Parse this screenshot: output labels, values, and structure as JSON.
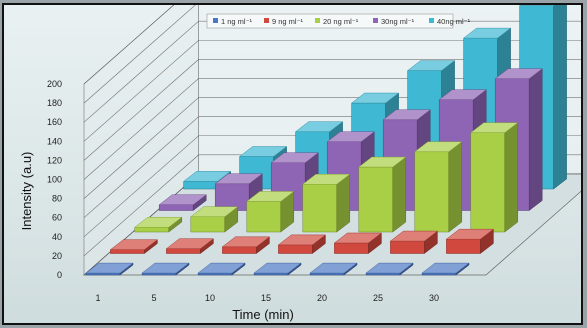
{
  "chart_data": {
    "type": "bar",
    "title": "",
    "xlabel": "Time (min)",
    "ylabel": "Intensity (a.u)",
    "categories": [
      "1",
      "5",
      "10",
      "15",
      "20",
      "25",
      "30"
    ],
    "y_ticks": [
      "0",
      "20",
      "40",
      "60",
      "80",
      "100",
      "120",
      "140",
      "160",
      "180",
      "200"
    ],
    "ylim": [
      0,
      200
    ],
    "grid": true,
    "legend_position": "top",
    "series": [
      {
        "name": "1 ng ml⁻¹",
        "color": "#4a77c4",
        "values": [
          2,
          2,
          2,
          2,
          2,
          2,
          2
        ]
      },
      {
        "name": "9 ng ml⁻¹",
        "color": "#d0483e",
        "values": [
          4,
          5,
          7,
          9,
          11,
          13,
          15
        ]
      },
      {
        "name": "20 ng ml⁻¹",
        "color": "#a8cf45",
        "values": [
          5,
          16,
          32,
          50,
          68,
          84,
          104
        ]
      },
      {
        "name": "30ng ml⁻¹",
        "color": "#8e64b5",
        "values": [
          6,
          28,
          50,
          72,
          95,
          116,
          138
        ]
      },
      {
        "name": "40ng ml⁻¹",
        "color": "#3fb8d3",
        "values": [
          8,
          34,
          60,
          90,
          124,
          158,
          192
        ]
      }
    ]
  }
}
